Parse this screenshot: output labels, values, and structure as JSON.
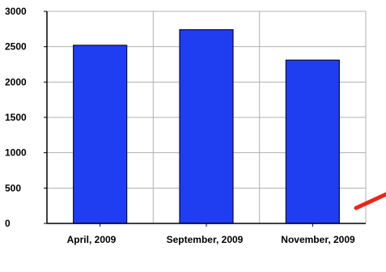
{
  "chart_data": {
    "type": "bar",
    "categories": [
      "April, 2009",
      "September, 2009",
      "November, 2009"
    ],
    "values": [
      2520,
      2740,
      2310
    ],
    "ylim": [
      0,
      3000
    ],
    "yticks": [
      0,
      500,
      1000,
      1500,
      2000,
      2500,
      3000
    ],
    "grid": true,
    "legend": "none",
    "title": "",
    "xlabel": "",
    "ylabel": ""
  },
  "colors": {
    "bar_fill": "#1f3ef2",
    "bar_stroke": "#0a0a3a",
    "grid": "#b0b0b0",
    "axis": "#000000",
    "arrow": "#e8261b"
  },
  "decorations": {
    "arrow": "red-arrow-icon"
  }
}
